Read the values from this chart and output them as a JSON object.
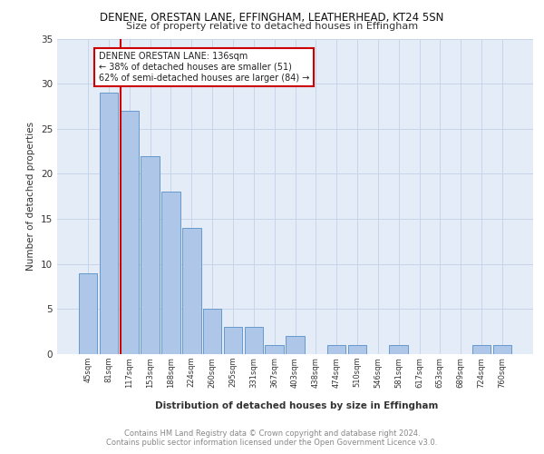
{
  "title1": "DENENE, ORESTAN LANE, EFFINGHAM, LEATHERHEAD, KT24 5SN",
  "title2": "Size of property relative to detached houses in Effingham",
  "xlabel": "Distribution of detached houses by size in Effingham",
  "ylabel": "Number of detached properties",
  "categories": [
    "45sqm",
    "81sqm",
    "117sqm",
    "153sqm",
    "188sqm",
    "224sqm",
    "260sqm",
    "295sqm",
    "331sqm",
    "367sqm",
    "403sqm",
    "438sqm",
    "474sqm",
    "510sqm",
    "546sqm",
    "581sqm",
    "617sqm",
    "653sqm",
    "689sqm",
    "724sqm",
    "760sqm"
  ],
  "values": [
    9,
    29,
    27,
    22,
    18,
    14,
    5,
    3,
    3,
    1,
    2,
    0,
    1,
    1,
    0,
    1,
    0,
    0,
    0,
    1,
    1
  ],
  "bar_color": "#aec6e8",
  "bar_edge_color": "#6699cc",
  "vline_x_index": 2,
  "vline_color": "#cc0000",
  "annotation_text": "DENENE ORESTAN LANE: 136sqm\n← 38% of detached houses are smaller (51)\n62% of semi-detached houses are larger (84) →",
  "annotation_box_color": "#ffffff",
  "annotation_box_edge": "#cc0000",
  "grid_color": "#c8d4e8",
  "background_color": "#e4ecf7",
  "ylim": [
    0,
    35
  ],
  "yticks": [
    0,
    5,
    10,
    15,
    20,
    25,
    30,
    35
  ],
  "footer1": "Contains HM Land Registry data © Crown copyright and database right 2024.",
  "footer2": "Contains public sector information licensed under the Open Government Licence v3.0."
}
